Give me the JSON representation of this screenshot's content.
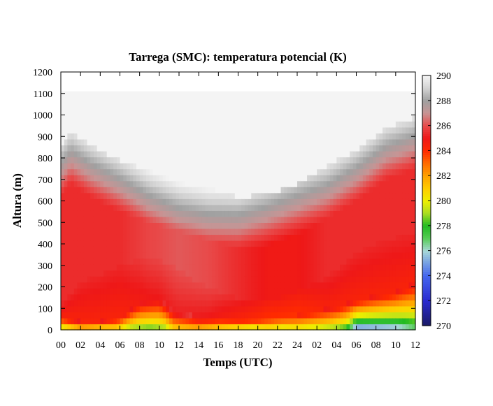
{
  "chart_data": {
    "type": "heatmap",
    "title": "Tarrega (SMC): temperatura potencial (K)",
    "xlabel": "Temps (UTC)",
    "ylabel": "Altura (m)",
    "x_tick_labels": [
      "00",
      "02",
      "04",
      "06",
      "08",
      "10",
      "12",
      "14",
      "16",
      "18",
      "20",
      "22",
      "24",
      "02",
      "04",
      "06",
      "08",
      "10",
      "12"
    ],
    "x_range_hours": [
      0,
      36
    ],
    "y_ticks": [
      0,
      100,
      200,
      300,
      400,
      500,
      600,
      700,
      800,
      900,
      1000,
      1100,
      1200
    ],
    "ylim": [
      0,
      1200
    ],
    "data_top_m": 1110,
    "colorbar": {
      "ticks": [
        270,
        272,
        274,
        276,
        278,
        280,
        282,
        284,
        286,
        288,
        290
      ],
      "range": [
        270,
        290
      ],
      "stops": [
        {
          "value": 270,
          "color": "#1a1a66"
        },
        {
          "value": 272,
          "color": "#2a2ad0"
        },
        {
          "value": 274,
          "color": "#4466ee"
        },
        {
          "value": 276,
          "color": "#a8d8d8"
        },
        {
          "value": 277,
          "color": "#55cc55"
        },
        {
          "value": 278,
          "color": "#22bb22"
        },
        {
          "value": 279,
          "color": "#aadd22"
        },
        {
          "value": 280,
          "color": "#eeee00"
        },
        {
          "value": 281,
          "color": "#ffcc00"
        },
        {
          "value": 282,
          "color": "#ffa000"
        },
        {
          "value": 283,
          "color": "#ff6a00"
        },
        {
          "value": 284,
          "color": "#ff2a00"
        },
        {
          "value": 285,
          "color": "#ee1818"
        },
        {
          "value": 286,
          "color": "#e84a4a"
        },
        {
          "value": 287,
          "color": "#c89494"
        },
        {
          "value": 288,
          "color": "#a0a0a0"
        },
        {
          "value": 289,
          "color": "#d2d2d2"
        },
        {
          "value": 290,
          "color": "#f4f4f4"
        }
      ]
    },
    "profile_model": {
      "upper_boundary_m": [
        [
          0,
          800
        ],
        [
          1,
          860
        ],
        [
          3,
          800
        ],
        [
          6,
          730
        ],
        [
          9,
          680
        ],
        [
          12,
          640
        ],
        [
          15,
          600
        ],
        [
          18,
          560
        ],
        [
          21,
          570
        ],
        [
          24,
          620
        ],
        [
          27,
          700
        ],
        [
          30,
          780
        ],
        [
          33,
          880
        ],
        [
          36,
          930
        ]
      ],
      "mixed_layer_theta_K": [
        [
          0,
          285
        ],
        [
          3,
          285
        ],
        [
          6,
          285
        ],
        [
          9,
          285.5
        ],
        [
          12,
          285.8
        ],
        [
          15,
          285.6
        ],
        [
          18,
          285
        ],
        [
          21,
          284.5
        ],
        [
          24,
          284.5
        ],
        [
          27,
          285
        ],
        [
          30,
          285
        ],
        [
          33,
          285
        ],
        [
          36,
          285
        ]
      ],
      "surface_theta_K": [
        [
          0,
          278
        ],
        [
          2,
          280
        ],
        [
          4,
          279
        ],
        [
          5.5,
          279.5
        ],
        [
          7,
          278
        ],
        [
          9,
          277.5
        ],
        [
          10.5,
          278
        ],
        [
          11.5,
          280
        ],
        [
          14,
          280.5
        ],
        [
          16,
          279.5
        ],
        [
          18,
          278.5
        ],
        [
          19.5,
          278
        ],
        [
          21,
          279
        ],
        [
          22.5,
          278.5
        ],
        [
          24,
          279
        ],
        [
          26,
          278.5
        ],
        [
          27.5,
          278
        ],
        [
          29,
          277
        ],
        [
          30,
          273.5
        ],
        [
          32,
          274
        ],
        [
          34,
          274.5
        ],
        [
          36,
          276
        ]
      ],
      "surface_layer_depth_m": [
        [
          0,
          60
        ],
        [
          2,
          40
        ],
        [
          4,
          40
        ],
        [
          6,
          60
        ],
        [
          8,
          130
        ],
        [
          10,
          150
        ],
        [
          11.5,
          90
        ],
        [
          14,
          60
        ],
        [
          16,
          60
        ],
        [
          18,
          50
        ],
        [
          20,
          50
        ],
        [
          22,
          60
        ],
        [
          24,
          70
        ],
        [
          26,
          90
        ],
        [
          28,
          110
        ],
        [
          30,
          140
        ],
        [
          32,
          160
        ],
        [
          34,
          180
        ],
        [
          36,
          220
        ]
      ],
      "warm_ribbon_height_m": [
        [
          0,
          120
        ],
        [
          2,
          220
        ],
        [
          4,
          260
        ],
        [
          6,
          300
        ],
        [
          8,
          330
        ],
        [
          10,
          330
        ],
        [
          12,
          280
        ],
        [
          14,
          220
        ],
        [
          16,
          180
        ],
        [
          18,
          150
        ],
        [
          20,
          140
        ],
        [
          22,
          150
        ],
        [
          24,
          180
        ],
        [
          26,
          220
        ],
        [
          28,
          280
        ],
        [
          30,
          360
        ],
        [
          32,
          400
        ],
        [
          34,
          430
        ],
        [
          36,
          450
        ]
      ]
    }
  }
}
